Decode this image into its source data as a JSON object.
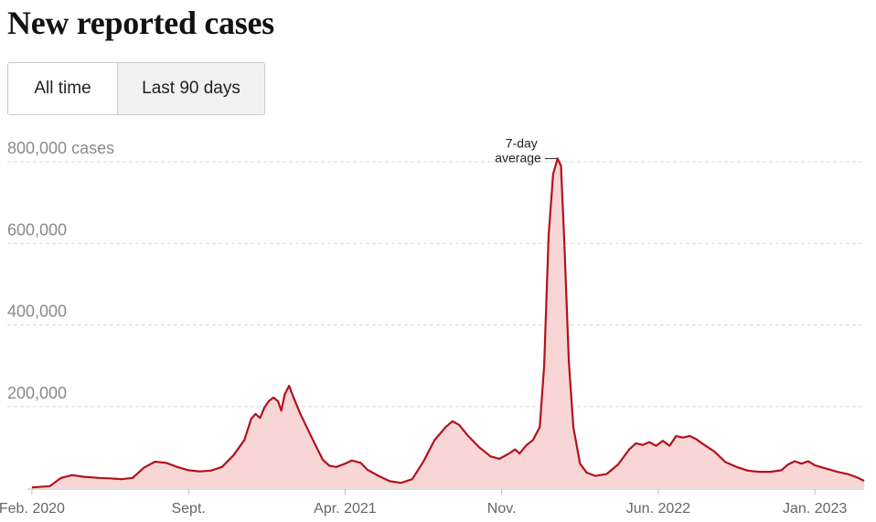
{
  "header": {
    "title": "New reported cases"
  },
  "range_toggle": {
    "options": [
      "All time",
      "Last 90 days"
    ],
    "selected": "All time"
  },
  "colors": {
    "line": "#b3121d",
    "fill": "#f9d6d6",
    "grid": "#d9d9d9",
    "axis": "#bdbdbd"
  },
  "chart_data": {
    "type": "area",
    "title": "New reported cases",
    "series": [
      {
        "name": "7-day average",
        "points": [
          [
            0,
            2000
          ],
          [
            0.3,
            3000
          ],
          [
            0.8,
            5000
          ],
          [
            1.3,
            25000
          ],
          [
            1.8,
            32000
          ],
          [
            2.3,
            28000
          ],
          [
            3.0,
            25000
          ],
          [
            3.5,
            24000
          ],
          [
            4.0,
            22000
          ],
          [
            4.5,
            25000
          ],
          [
            5.0,
            50000
          ],
          [
            5.5,
            65000
          ],
          [
            6.0,
            62000
          ],
          [
            6.5,
            52000
          ],
          [
            7.0,
            44000
          ],
          [
            7.5,
            41000
          ],
          [
            8.0,
            43000
          ],
          [
            8.5,
            52000
          ],
          [
            9.0,
            80000
          ],
          [
            9.5,
            118000
          ],
          [
            9.8,
            170000
          ],
          [
            10.0,
            182000
          ],
          [
            10.2,
            172000
          ],
          [
            10.4,
            198000
          ],
          [
            10.6,
            214000
          ],
          [
            10.8,
            222000
          ],
          [
            11.0,
            213000
          ],
          [
            11.15,
            190000
          ],
          [
            11.3,
            230000
          ],
          [
            11.5,
            251000
          ],
          [
            11.7,
            222000
          ],
          [
            12.0,
            182000
          ],
          [
            12.5,
            125000
          ],
          [
            13.0,
            70000
          ],
          [
            13.3,
            55000
          ],
          [
            13.6,
            52000
          ],
          [
            14.0,
            60000
          ],
          [
            14.3,
            68000
          ],
          [
            14.7,
            62000
          ],
          [
            15.0,
            45000
          ],
          [
            15.5,
            30000
          ],
          [
            16.0,
            17000
          ],
          [
            16.5,
            13000
          ],
          [
            17.0,
            22000
          ],
          [
            17.5,
            65000
          ],
          [
            18.0,
            118000
          ],
          [
            18.5,
            150000
          ],
          [
            18.8,
            164000
          ],
          [
            19.1,
            155000
          ],
          [
            19.5,
            128000
          ],
          [
            20.0,
            100000
          ],
          [
            20.5,
            78000
          ],
          [
            20.9,
            72000
          ],
          [
            21.3,
            84000
          ],
          [
            21.6,
            95000
          ],
          [
            21.8,
            85000
          ],
          [
            22.1,
            105000
          ],
          [
            22.4,
            118000
          ],
          [
            22.7,
            150000
          ],
          [
            22.9,
            300000
          ],
          [
            23.1,
            620000
          ],
          [
            23.3,
            770000
          ],
          [
            23.5,
            808000
          ],
          [
            23.65,
            790000
          ],
          [
            23.8,
            600000
          ],
          [
            24.0,
            310000
          ],
          [
            24.2,
            150000
          ],
          [
            24.5,
            60000
          ],
          [
            24.8,
            38000
          ],
          [
            25.2,
            30000
          ],
          [
            25.7,
            35000
          ],
          [
            26.2,
            58000
          ],
          [
            26.7,
            95000
          ],
          [
            27.0,
            110000
          ],
          [
            27.3,
            106000
          ],
          [
            27.6,
            113000
          ],
          [
            27.9,
            104000
          ],
          [
            28.2,
            116000
          ],
          [
            28.5,
            104000
          ],
          [
            28.8,
            128000
          ],
          [
            29.1,
            124000
          ],
          [
            29.4,
            128000
          ],
          [
            29.7,
            120000
          ],
          [
            30.0,
            108000
          ],
          [
            30.5,
            90000
          ],
          [
            31.0,
            64000
          ],
          [
            31.5,
            52000
          ],
          [
            32.0,
            43000
          ],
          [
            32.5,
            40000
          ],
          [
            33.0,
            40000
          ],
          [
            33.5,
            44000
          ],
          [
            33.8,
            58000
          ],
          [
            34.1,
            66000
          ],
          [
            34.4,
            60000
          ],
          [
            34.7,
            66000
          ],
          [
            35.0,
            56000
          ],
          [
            35.5,
            48000
          ],
          [
            36.0,
            40000
          ],
          [
            36.5,
            34000
          ],
          [
            36.9,
            26000
          ],
          [
            37.2,
            18000
          ]
        ]
      }
    ],
    "x_unit": "months since Feb. 2020",
    "xlim": [
      -0.2,
      37.2
    ],
    "ylim": [
      0,
      850000
    ],
    "xticks": [
      {
        "x": 0,
        "label": "Feb. 2020"
      },
      {
        "x": 7,
        "label": "Sept."
      },
      {
        "x": 14,
        "label": "Apr. 2021"
      },
      {
        "x": 21,
        "label": "Nov."
      },
      {
        "x": 28,
        "label": "Jun. 2022"
      },
      {
        "x": 35,
        "label": "Jan. 2023"
      }
    ],
    "yticks": [
      {
        "y": 800000,
        "label": "800,000 cases"
      },
      {
        "y": 600000,
        "label": "600,000"
      },
      {
        "y": 400000,
        "label": "400,000"
      },
      {
        "y": 200000,
        "label": "200,000"
      }
    ],
    "grid": true,
    "annotation": {
      "lines": [
        "7-day",
        "average"
      ],
      "x": 23.5,
      "y": 808000
    }
  }
}
